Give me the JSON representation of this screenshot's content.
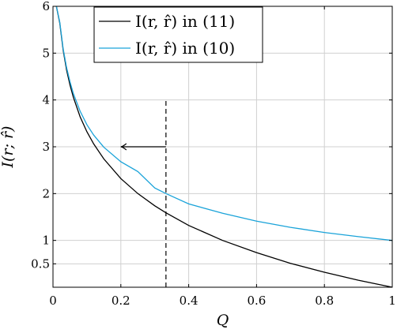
{
  "chart_data": {
    "type": "line",
    "xlabel": "Q",
    "ylabel": "I(r; r̂)",
    "xlim": [
      0,
      1
    ],
    "ylim": [
      0,
      6
    ],
    "x_ticks": [
      "0",
      "0.2",
      "0.4",
      "0.6",
      "0.8",
      "1"
    ],
    "x_tick_values": [
      0,
      0.2,
      0.4,
      0.6,
      0.8,
      1
    ],
    "y_ticks": [
      "0.5",
      "1",
      "2",
      "3",
      "4",
      "5",
      "6"
    ],
    "y_tick_values": [
      0.5,
      1,
      2,
      3,
      4,
      5,
      6
    ],
    "grid": true,
    "legend_position": "top-center",
    "series": [
      {
        "name": "I(r, r̂) in (11)",
        "color": "#000000",
        "x": [
          0.01,
          0.02,
          0.03,
          0.04,
          0.05,
          0.06,
          0.08,
          0.1,
          0.12,
          0.15,
          0.2,
          0.25,
          0.3,
          0.333,
          0.4,
          0.5,
          0.6,
          0.7,
          0.8,
          0.9,
          1.0
        ],
        "y": [
          6.64,
          5.64,
          5.06,
          4.64,
          4.32,
          4.06,
          3.64,
          3.32,
          3.06,
          2.74,
          2.32,
          2.0,
          1.74,
          1.59,
          1.32,
          1.0,
          0.74,
          0.51,
          0.32,
          0.15,
          0.0
        ]
      },
      {
        "name": "I(r, r̂) in (10)",
        "color": "#1aa3d9",
        "x": [
          0.01,
          0.02,
          0.03,
          0.04,
          0.05,
          0.06,
          0.08,
          0.1,
          0.12,
          0.15,
          0.2,
          0.25,
          0.3,
          0.333,
          0.4,
          0.5,
          0.6,
          0.7,
          0.8,
          0.9,
          1.0
        ],
        "y": [
          6.65,
          5.66,
          5.09,
          4.69,
          4.39,
          4.14,
          3.76,
          3.47,
          3.25,
          2.99,
          2.68,
          2.47,
          2.12,
          2.0,
          1.78,
          1.58,
          1.41,
          1.28,
          1.17,
          1.08,
          1.0
        ]
      }
    ],
    "annotations": [
      {
        "type": "vertical-dashed-line",
        "x": 0.333,
        "y_from": 0,
        "y_to": 4
      },
      {
        "type": "arrow",
        "from": [
          0.333,
          3
        ],
        "to": [
          0.2,
          3
        ]
      }
    ]
  }
}
